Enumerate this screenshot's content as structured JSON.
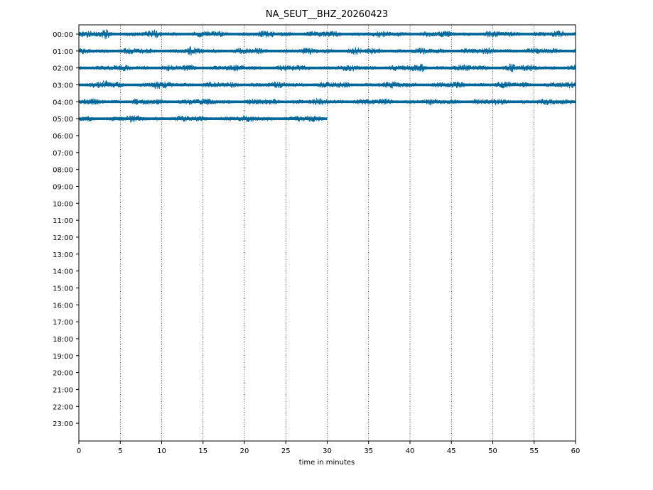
{
  "chart_data": {
    "type": "line",
    "title": "NA_SEUT__BHZ_20260423",
    "xlabel": "time in minutes",
    "ylabel": "",
    "xlim": [
      0,
      60
    ],
    "x_ticks": [
      0,
      5,
      10,
      15,
      20,
      25,
      30,
      35,
      40,
      45,
      50,
      55,
      60
    ],
    "y_ticks": [
      "00:00",
      "01:00",
      "02:00",
      "03:00",
      "04:00",
      "05:00",
      "06:00",
      "07:00",
      "08:00",
      "09:00",
      "10:00",
      "11:00",
      "12:00",
      "13:00",
      "14:00",
      "15:00",
      "16:00",
      "17:00",
      "18:00",
      "19:00",
      "20:00",
      "21:00",
      "22:00",
      "23:00"
    ],
    "grid": "vertical dotted",
    "trace_color": "#00679a",
    "series": [
      {
        "hour": "00:00",
        "start_min": 0,
        "end_min": 60
      },
      {
        "hour": "01:00",
        "start_min": 0,
        "end_min": 60
      },
      {
        "hour": "02:00",
        "start_min": 0,
        "end_min": 60
      },
      {
        "hour": "03:00",
        "start_min": 0,
        "end_min": 60
      },
      {
        "hour": "04:00",
        "start_min": 0,
        "end_min": 60
      },
      {
        "hour": "05:00",
        "start_min": 0,
        "end_min": 30
      }
    ]
  }
}
